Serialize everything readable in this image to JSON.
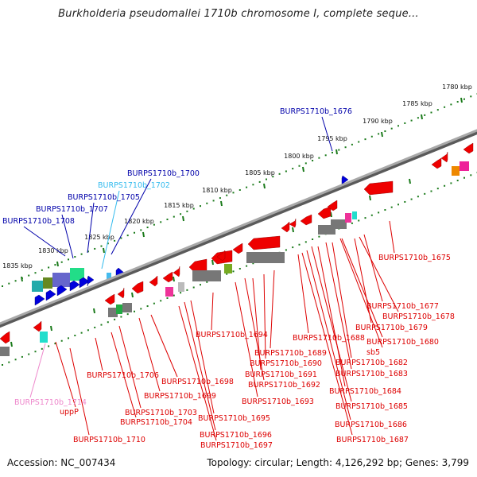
{
  "title": "Burkholderia pseudomallei 1710b chromosome I, complete seque...",
  "footer": {
    "accession": "Accession: NC_007434",
    "summary": "Topology: circular; Length: 4,126,292 bp; Genes: 3,799"
  },
  "scale": {
    "ticks": [
      {
        "label": "1780 kbp",
        "kbp": 1780
      },
      {
        "label": "1785 kbp",
        "kbp": 1785
      },
      {
        "label": "1790 kbp",
        "kbp": 1790
      },
      {
        "label": "1795 kbp",
        "kbp": 1795
      },
      {
        "label": "1800 kbp",
        "kbp": 1800
      },
      {
        "label": "1805 kbp",
        "kbp": 1805
      },
      {
        "label": "1810 kbp",
        "kbp": 1810
      },
      {
        "label": "1815 kbp",
        "kbp": 1815
      },
      {
        "label": "1820 kbp",
        "kbp": 1820
      },
      {
        "label": "1825 kbp",
        "kbp": 1825
      },
      {
        "label": "1830 kbp",
        "kbp": 1830
      },
      {
        "label": "1835 kbp",
        "kbp": 1835
      }
    ]
  },
  "colors": {
    "forward_gene": "#0000dd",
    "reverse_gene": "#ee0000",
    "pseudo_gene": "#777777",
    "backbone": "#888888",
    "tick": "#1a7a1a",
    "label_blue": "#0000aa",
    "label_cyan": "#33bbee",
    "label_red": "#dd0000",
    "label_pink": "#ee88cc"
  },
  "labels_top": [
    {
      "text": "BURPS1710b_1676",
      "color": "blue"
    },
    {
      "text": "BURPS1710b_1700",
      "color": "blue"
    },
    {
      "text": "BURPS1710b_1702",
      "color": "cyan"
    },
    {
      "text": "BURPS1710b_1705",
      "color": "blue"
    },
    {
      "text": "BURPS1710b_1707",
      "color": "blue"
    },
    {
      "text": "BURPS1710b_1708",
      "color": "blue"
    }
  ],
  "labels_bottom": [
    {
      "text": "BURPS1710b_1675",
      "color": "red"
    },
    {
      "text": "BURPS1710b_1677",
      "color": "red"
    },
    {
      "text": "BURPS1710b_1678",
      "color": "red"
    },
    {
      "text": "BURPS1710b_1679",
      "color": "red"
    },
    {
      "text": "BURPS1710b_1680",
      "color": "red"
    },
    {
      "text": "sb5",
      "color": "red"
    },
    {
      "text": "BURPS1710b_1682",
      "color": "red"
    },
    {
      "text": "BURPS1710b_1683",
      "color": "red"
    },
    {
      "text": "BURPS1710b_1684",
      "color": "red"
    },
    {
      "text": "BURPS1710b_1685",
      "color": "red"
    },
    {
      "text": "BURPS1710b_1686",
      "color": "red"
    },
    {
      "text": "BURPS1710b_1687",
      "color": "red"
    },
    {
      "text": "BURPS1710b_1688",
      "color": "red"
    },
    {
      "text": "BURPS1710b_1689",
      "color": "red"
    },
    {
      "text": "BURPS1710b_1690",
      "color": "red"
    },
    {
      "text": "BURPS1710b_1691",
      "color": "red"
    },
    {
      "text": "BURPS1710b_1692",
      "color": "red"
    },
    {
      "text": "BURPS1710b_1693",
      "color": "red"
    },
    {
      "text": "BURPS1710b_1694",
      "color": "red"
    },
    {
      "text": "BURPS1710b_1695",
      "color": "red"
    },
    {
      "text": "BURPS1710b_1696",
      "color": "red"
    },
    {
      "text": "BURPS1710b_1697",
      "color": "red"
    },
    {
      "text": "BURPS1710b_1698",
      "color": "red"
    },
    {
      "text": "BURPS1710b_1699",
      "color": "red"
    },
    {
      "text": "BURPS1710b_1703",
      "color": "red"
    },
    {
      "text": "BURPS1710b_1704",
      "color": "red"
    },
    {
      "text": "BURPS1710b_1706",
      "color": "red"
    },
    {
      "text": "BURPS1710b_1710",
      "color": "red"
    },
    {
      "text": "BURPS1710b_1714",
      "color": "pink"
    },
    {
      "text": "uppP",
      "color": "red"
    }
  ]
}
